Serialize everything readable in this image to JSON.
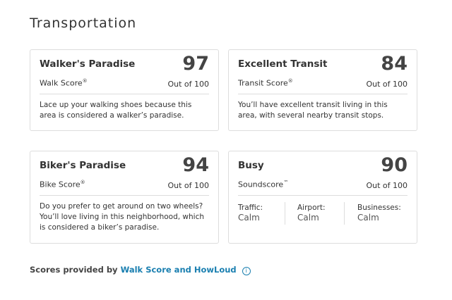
{
  "title": "Transportation",
  "cards": [
    {
      "title": "Walker's Paradise",
      "score": "97",
      "label": "Walk Score",
      "mark": "®",
      "out_of": "Out of 100",
      "desc": "Lace up your walking shoes because this area is considered a walker’s paradise."
    },
    {
      "title": "Excellent Transit",
      "score": "84",
      "label": "Transit Score",
      "mark": "®",
      "out_of": "Out of 100",
      "desc": "You’ll have excellent transit living in this area, with several nearby transit stops."
    },
    {
      "title": "Biker's Paradise",
      "score": "94",
      "label": "Bike Score",
      "mark": "®",
      "out_of": "Out of 100",
      "desc": "Do you prefer to get around on two wheels? You’ll love living in this neighborhood, which is considered a biker’s paradise."
    },
    {
      "title": "Busy",
      "score": "90",
      "label": "Soundscore",
      "mark": "™",
      "out_of": "Out of 100",
      "subs": [
        {
          "label": "Traffic:",
          "value": "Calm"
        },
        {
          "label": "Airport:",
          "value": "Calm"
        },
        {
          "label": "Businesses:",
          "value": "Calm"
        }
      ]
    }
  ],
  "footer": {
    "prefix": "Scores provided by",
    "link": "Walk Score and HowLoud",
    "icon": "info-icon"
  },
  "colors": {
    "link": "#1a7fb0"
  }
}
